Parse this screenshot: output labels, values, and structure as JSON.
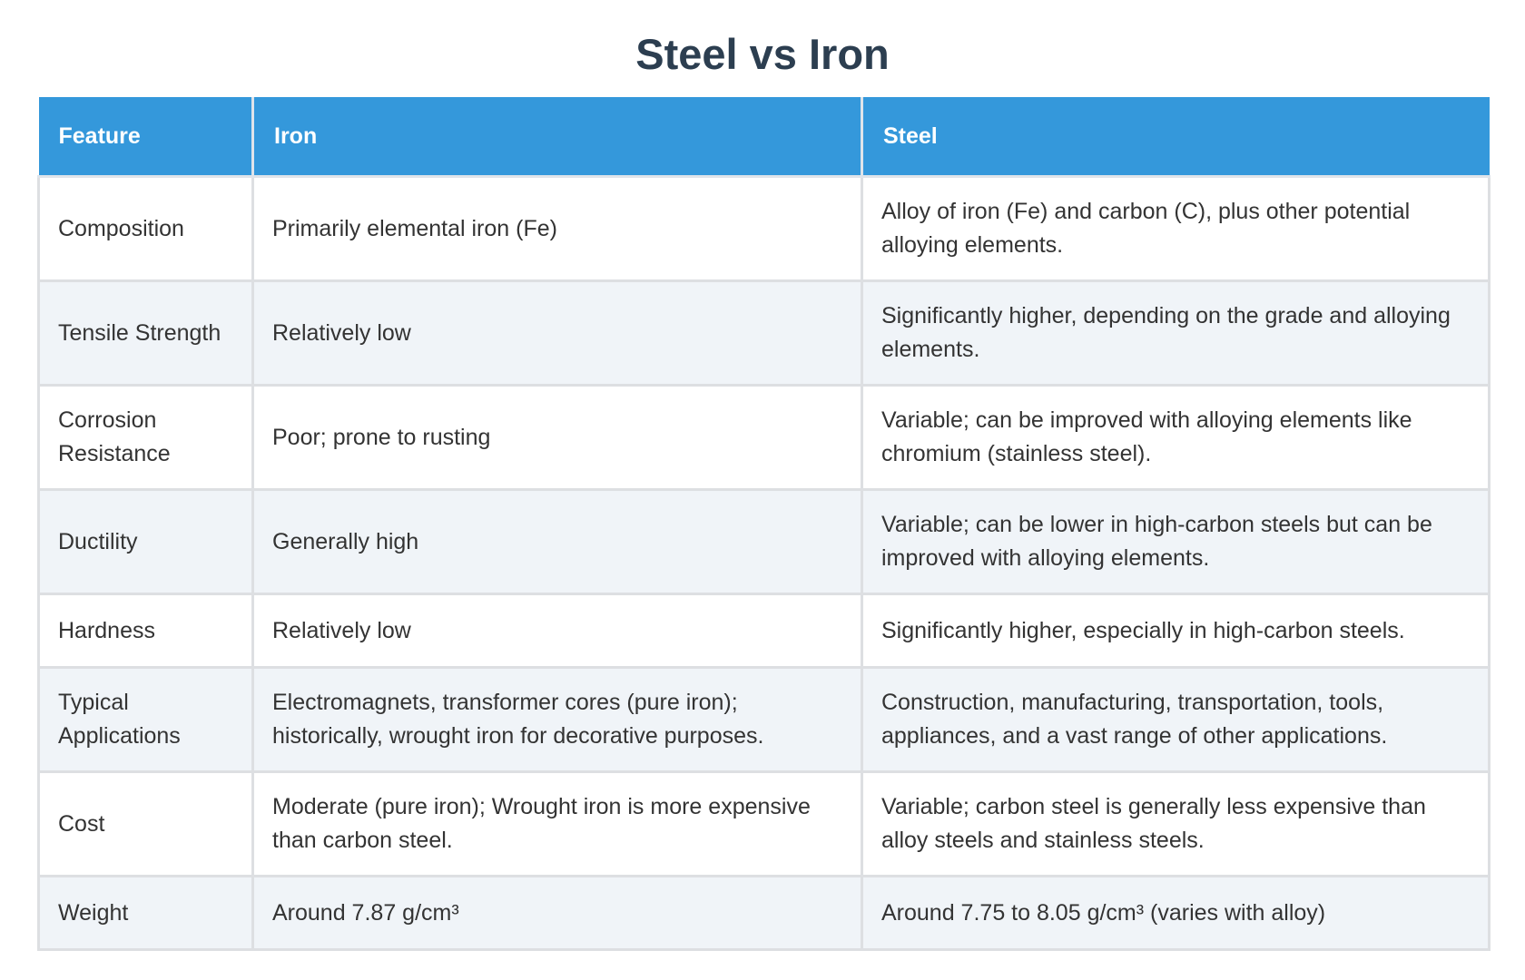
{
  "title": "Steel vs Iron",
  "table": {
    "headers": [
      "Feature",
      "Iron",
      "Steel"
    ],
    "rows": [
      {
        "feature": "Composition",
        "iron": "Primarily elemental iron (Fe)",
        "steel": "Alloy of iron (Fe) and carbon (C), plus other potential alloying elements."
      },
      {
        "feature": "Tensile Strength",
        "iron": "Relatively low",
        "steel": "Significantly higher, depending on the grade and alloying elements."
      },
      {
        "feature": "Corrosion Resistance",
        "iron": "Poor; prone to rusting",
        "steel": "Variable; can be improved with alloying elements like chromium (stainless steel)."
      },
      {
        "feature": "Ductility",
        "iron": "Generally high",
        "steel": "Variable; can be lower in high-carbon steels but can be improved with alloying elements."
      },
      {
        "feature": "Hardness",
        "iron": "Relatively low",
        "steel": "Significantly higher, especially in high-carbon steels."
      },
      {
        "feature": "Typical Applications",
        "iron": "Electromagnets, transformer cores (pure iron); historically, wrought iron for decorative purposes.",
        "steel": "Construction, manufacturing, transportation, tools, appliances, and a vast range of other applications."
      },
      {
        "feature": "Cost",
        "iron": "Moderate (pure iron); Wrought iron is more expensive than carbon steel.",
        "steel": "Variable; carbon steel is generally less expensive than alloy steels and stainless steels."
      },
      {
        "feature": "Weight",
        "iron": "Around 7.87 g/cm³",
        "steel": "Around 7.75 to 8.05 g/cm³ (varies with alloy)"
      }
    ]
  },
  "colors": {
    "title": "#2c3e50",
    "header_background": "#3498db",
    "header_text": "#ffffff",
    "stripe_row": "#f0f4f8",
    "border": "#dddfe2"
  }
}
